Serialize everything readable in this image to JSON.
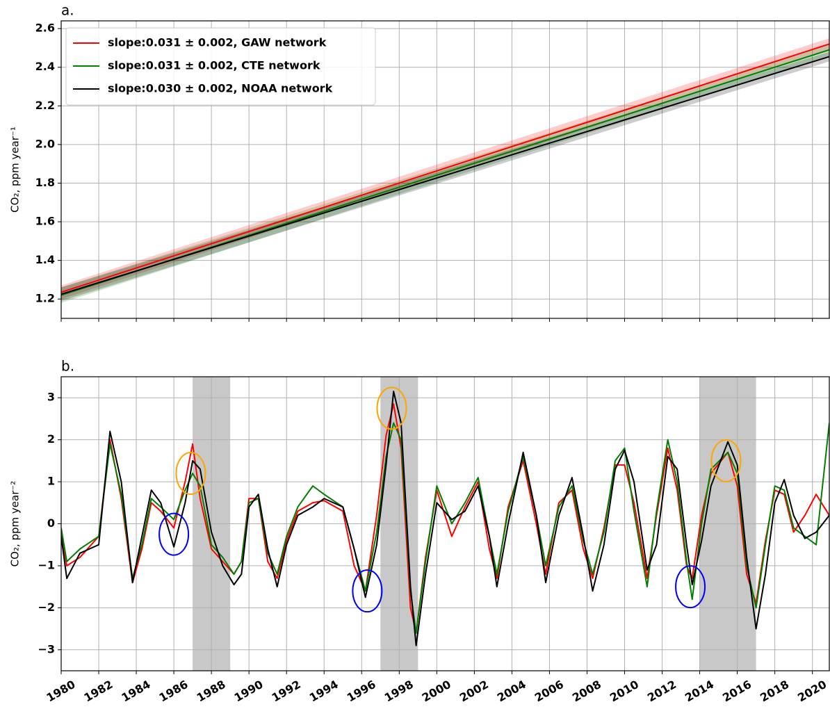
{
  "chart_data": [
    {
      "type": "line",
      "title": "a.",
      "ylabel": "CO₂, ppm year⁻¹",
      "xlim": [
        1980,
        2020.9
      ],
      "ylim": [
        1.1,
        2.64
      ],
      "xticks": [
        1980,
        1982,
        1984,
        1986,
        1988,
        1990,
        1992,
        1994,
        1996,
        1998,
        2000,
        2002,
        2004,
        2006,
        2008,
        2010,
        2012,
        2014,
        2016,
        2018,
        2020
      ],
      "yticks": [
        1.2,
        1.4,
        1.6,
        1.8,
        {
          "value": 2.0,
          "label": "2.0"
        },
        2.2,
        2.4,
        2.6
      ],
      "grid": true,
      "legend": "upper left",
      "x": [
        1980,
        2020.9
      ],
      "series": [
        {
          "name": "slope:0.031 ± 0.002, GAW network",
          "color": "#ff0000",
          "values": [
            1.235,
            2.52
          ],
          "lower": [
            1.2,
            2.49
          ],
          "upper": [
            1.27,
            2.55
          ]
        },
        {
          "name": "slope:0.031 ± 0.002, CTE network",
          "color": "#008000",
          "values": [
            1.22,
            2.49
          ],
          "lower": [
            1.18,
            2.46
          ],
          "upper": [
            1.26,
            2.52
          ]
        },
        {
          "name": "slope:0.030 ± 0.002, NOAA network",
          "color": "#000000",
          "values": [
            1.225,
            2.455
          ],
          "lower": [
            1.19,
            2.43
          ],
          "upper": [
            1.26,
            2.48
          ]
        }
      ]
    },
    {
      "type": "line",
      "title": "b.",
      "ylabel": "CO₂, ppm year⁻²",
      "xlim": [
        1980,
        2020.9
      ],
      "ylim": [
        -3.5,
        3.5
      ],
      "xticks": [
        1980,
        1982,
        1984,
        1986,
        1988,
        1990,
        1992,
        1994,
        1996,
        1998,
        2000,
        2002,
        2004,
        2006,
        2008,
        2010,
        2012,
        2014,
        2016,
        2018,
        2020
      ],
      "yticks": [
        {
          "value": -3,
          "label": "−3"
        },
        {
          "value": -2,
          "label": "−2"
        },
        {
          "value": -1,
          "label": "−1"
        },
        0,
        1,
        2,
        3
      ],
      "grid": true,
      "spans": [
        {
          "x0": 1987,
          "x1": 1989,
          "color": "#c8c8c8"
        },
        {
          "x0": 1997,
          "x1": 1999,
          "color": "#c8c8c8"
        },
        {
          "x0": 2014,
          "x1": 2017,
          "color": "#c8c8c8"
        }
      ],
      "circles": [
        {
          "x": 1986,
          "y": -0.25,
          "color": "#0000ff"
        },
        {
          "x": 1996.3,
          "y": -1.6,
          "color": "#0000ff"
        },
        {
          "x": 2013.5,
          "y": -1.5,
          "color": "#0000ff"
        },
        {
          "x": 1986.9,
          "y": 1.2,
          "color": "#ffa500"
        },
        {
          "x": 1997.6,
          "y": 2.75,
          "color": "#ffa500"
        },
        {
          "x": 2015.4,
          "y": 1.5,
          "color": "#ffa500"
        }
      ],
      "x": [
        1980,
        1980.3,
        1981,
        1982,
        1982.6,
        1983.2,
        1983.8,
        1984.3,
        1984.8,
        1985.3,
        1986,
        1986.6,
        1987,
        1987.4,
        1988,
        1988.6,
        1989.2,
        1989.6,
        1990,
        1990.5,
        1991,
        1991.5,
        1992,
        1992.6,
        1993.4,
        1994,
        1995,
        1995.6,
        1996.2,
        1996.8,
        1997.3,
        1997.7,
        1998.1,
        1998.6,
        1998.9,
        1999.4,
        2000,
        2000.8,
        2001.5,
        2002.2,
        2002.8,
        2003.2,
        2003.8,
        2004.6,
        2005.3,
        2005.8,
        2006.5,
        2007.2,
        2007.8,
        2008.3,
        2008.9,
        2009.5,
        2010,
        2010.5,
        2011.2,
        2011.7,
        2012.3,
        2012.8,
        2013.3,
        2013.6,
        2014.1,
        2014.6,
        2015.5,
        2016,
        2016.5,
        2017,
        2017.5,
        2018,
        2018.5,
        2019,
        2019.6,
        2020.2,
        2020.9
      ],
      "series": [
        {
          "color": "#ff0000",
          "values": [
            -0.2,
            -1.0,
            -0.8,
            -0.3,
            2.0,
            0.6,
            -1.4,
            -0.6,
            0.5,
            0.3,
            -0.1,
            1.0,
            1.9,
            0.6,
            -0.6,
            -0.9,
            -1.2,
            -0.9,
            0.6,
            0.6,
            -0.9,
            -1.3,
            -0.4,
            0.3,
            0.5,
            0.55,
            0.3,
            -1.0,
            -1.6,
            0.2,
            2.1,
            2.85,
            1.8,
            -2.0,
            -2.6,
            -0.8,
            0.8,
            -0.3,
            0.4,
            1.0,
            -0.6,
            -1.3,
            0.4,
            1.5,
            0.0,
            -1.2,
            0.5,
            0.8,
            -0.6,
            -1.3,
            -0.1,
            1.4,
            1.4,
            0.5,
            -1.3,
            0.2,
            1.8,
            0.8,
            -1.0,
            -1.3,
            0.2,
            1.2,
            1.7,
            0.9,
            -1.2,
            -1.9,
            -0.4,
            0.8,
            0.7,
            -0.2,
            0.2,
            0.7,
            0.2
          ]
        },
        {
          "color": "#008000",
          "values": [
            -0.1,
            -0.9,
            -0.6,
            -0.3,
            1.9,
            0.7,
            -1.3,
            -0.5,
            0.6,
            0.4,
            0.1,
            0.8,
            1.2,
            0.9,
            -0.5,
            -0.8,
            -1.2,
            -0.9,
            0.5,
            0.6,
            -0.7,
            -1.2,
            -0.3,
            0.4,
            0.9,
            0.7,
            0.4,
            -0.6,
            -1.6,
            -0.2,
            1.6,
            2.4,
            2.0,
            -1.6,
            -2.6,
            -0.9,
            0.9,
            0.0,
            0.5,
            1.1,
            -0.3,
            -1.2,
            0.3,
            1.6,
            0.2,
            -1.0,
            0.4,
            0.9,
            -0.4,
            -1.2,
            -0.2,
            1.5,
            1.8,
            0.3,
            -1.5,
            0.3,
            2.0,
            1.0,
            -0.9,
            -1.8,
            0.0,
            1.3,
            1.7,
            1.2,
            -1.0,
            -2.0,
            -0.5,
            0.9,
            0.8,
            -0.1,
            -0.3,
            -0.5,
            2.4
          ]
        },
        {
          "color": "#000000",
          "values": [
            -0.3,
            -1.3,
            -0.7,
            -0.5,
            2.2,
            1.0,
            -1.4,
            -0.3,
            0.8,
            0.5,
            -0.55,
            0.5,
            1.5,
            1.3,
            -0.2,
            -1.0,
            -1.45,
            -1.2,
            0.4,
            0.7,
            -0.6,
            -1.5,
            -0.5,
            0.2,
            0.4,
            0.6,
            0.4,
            -0.6,
            -1.75,
            -0.5,
            1.4,
            3.15,
            2.4,
            -1.5,
            -2.9,
            -1.2,
            0.5,
            0.1,
            0.3,
            0.9,
            -0.3,
            -1.5,
            0,
            1.7,
            0.2,
            -1.4,
            0.2,
            1.1,
            -0.3,
            -1.6,
            -0.5,
            1.3,
            1.75,
            1.0,
            -1.1,
            -0.5,
            1.6,
            1.3,
            -0.5,
            -1.45,
            -0.4,
            0.9,
            1.95,
            1.4,
            -0.8,
            -2.5,
            -1.2,
            0.5,
            1.05,
            0.2,
            -0.35,
            -0.2,
            0.2
          ]
        }
      ]
    }
  ]
}
